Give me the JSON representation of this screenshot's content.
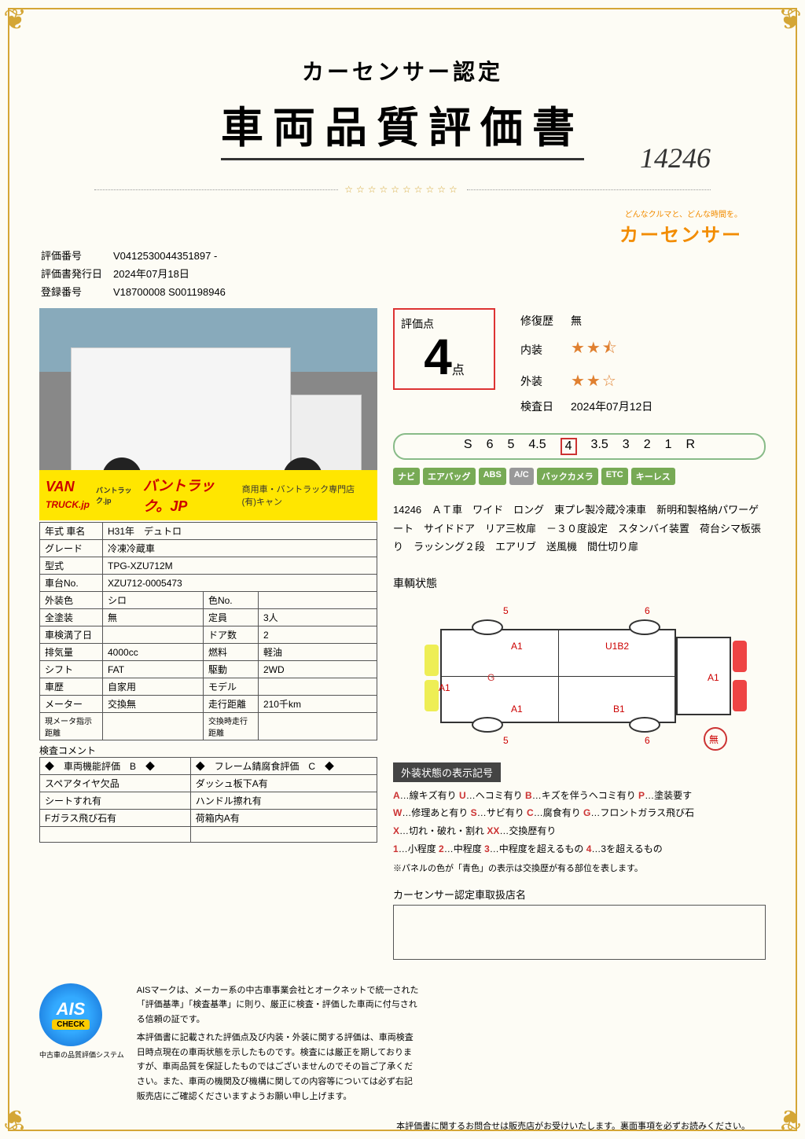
{
  "header": {
    "subtitle": "カーセンサー認定",
    "title": "車両品質評価書",
    "handwritten": "14246"
  },
  "logo": {
    "tagline": "どんなクルマと、どんな時間を。",
    "brand": "カーセンサー"
  },
  "meta": {
    "eval_no_label": "評価番号",
    "eval_no": "V0412530044351897 -",
    "issue_label": "評価書発行日",
    "issue_date": "2024年07月18日",
    "reg_label": "登録番号",
    "reg_no": "V18700008 S001198946"
  },
  "photo_banner": {
    "van": "VAN",
    "truck": "TRUCK.jp",
    "jp": "バントラック.jp",
    "main": "バントラック。JP",
    "sub": "商用車・バントラック専門店　(有)キャン"
  },
  "specs": {
    "r1": {
      "l1": "年式 車名",
      "v1": "H31年　デュトロ"
    },
    "r2": {
      "l1": "グレード",
      "v1": "冷凍冷蔵車"
    },
    "r3": {
      "l1": "型式",
      "v1": "TPG-XZU712M"
    },
    "r4": {
      "l1": "車台No.",
      "v1": "XZU712-0005473"
    },
    "r5": {
      "l1": "外装色",
      "v1": "シロ",
      "l2": "色No.",
      "v2": ""
    },
    "r6": {
      "l1": "全塗装",
      "v1": "無",
      "l2": "定員",
      "v2": "3人"
    },
    "r7": {
      "l1": "車検満了日",
      "v1": "",
      "l2": "ドア数",
      "v2": "2"
    },
    "r8": {
      "l1": "排気量",
      "v1": "4000cc",
      "l2": "燃料",
      "v2": "軽油"
    },
    "r9": {
      "l1": "シフト",
      "v1": "FAT",
      "l2": "駆動",
      "v2": "2WD"
    },
    "r10": {
      "l1": "車歴",
      "v1": "自家用",
      "l2": "モデル",
      "v2": ""
    },
    "r11": {
      "l1": "メーター",
      "v1": "交換無",
      "l2": "走行距離",
      "v2": "210千km"
    },
    "r12": {
      "l1": "現メータ指示距離",
      "v1": "",
      "l2": "交換時走行距離",
      "v2": ""
    }
  },
  "comments": {
    "header": "検査コメント",
    "func_hdr": "◆　車両機能評価　B　◆",
    "frame_hdr": "◆　フレーム錆腐食評価　C　◆",
    "r1l": "スペアタイヤ欠品",
    "r1r": "ダッシュ板下A有",
    "r2l": "シートすれ有",
    "r2r": "ハンドル擦れ有",
    "r3l": "Fガラス飛び石有",
    "r3r": "荷箱内A有"
  },
  "score": {
    "label": "評価点",
    "value": "4",
    "unit": "点",
    "repair_label": "修復歴",
    "repair_val": "無",
    "interior_label": "内装",
    "interior_stars": "★★⯪",
    "exterior_label": "外装",
    "exterior_stars": "★★☆",
    "inspect_label": "検査日",
    "inspect_date": "2024年07月12日"
  },
  "scale": [
    "S",
    "6",
    "5",
    "4.5",
    "4",
    "3.5",
    "3",
    "2",
    "1",
    "R"
  ],
  "scale_selected": "4",
  "badges": [
    "ナビ",
    "エアバッグ",
    "ABS",
    "A/C",
    "バックカメラ",
    "ETC",
    "キーレス"
  ],
  "description": "14246　ＡＴ車　ワイド　ロング　東プレ製冷蔵冷凍車　新明和製格納パワーゲート　サイドドア　リア三枚扉　－３０度設定　スタンバイ装置　荷台シマ板張り　ラッシング２段　エアリブ　送風機　間仕切り扉",
  "diagram": {
    "title": "車輌状態",
    "marks": {
      "m1": "5",
      "m2": "6",
      "m3": "A1",
      "m4": "U1B2",
      "m5": "G",
      "m6": "A1",
      "m7": "A1",
      "m8": "A1",
      "m9": "B1",
      "m10": "5",
      "m11": "6",
      "m12": "無"
    }
  },
  "legend": {
    "header": "外装状態の表示記号",
    "line1": "A…線キズ有り U…ヘコミ有り B…キズを伴うヘコミ有り P…塗装要す",
    "line2": "W…修理あと有り S…サビ有り C…腐食有り G…フロントガラス飛び石",
    "line3": "X…切れ・破れ・割れ XX…交換歴有り",
    "line4": "1…小程度 2…中程度 3…中程度を超えるもの 4…3を超えるもの",
    "note": "※パネルの色が「青色」の表示は交換歴が有る部位を表します。"
  },
  "dealer": {
    "label": "カーセンサー認定車取扱店名"
  },
  "ais": {
    "name": "AIS",
    "check": "CHECK",
    "caption": "中古車の品質評価システム",
    "text1": "AISマークは、メーカー系の中古車事業会社とオークネットで統一された「評価基準」「検査基準」に則り、厳正に検査・評価した車両に付与される信頼の証です。",
    "text2": "本評価書に記載された評価点及び内装・外装に関する評価は、車両検査日時点現在の車両状態を示したものです。検査には厳正を期しておりますが、車両品質を保証したものではございませんのでその旨ご了承ください。また、車両の機関及び機構に関しての内容等については必ず右記販売店にご確認くださいますようお願い申し上げます。"
  },
  "bottom_note": "本評価書に関するお問合せは販売店がお受けいたします。裏面事項を必ずお読みください。"
}
